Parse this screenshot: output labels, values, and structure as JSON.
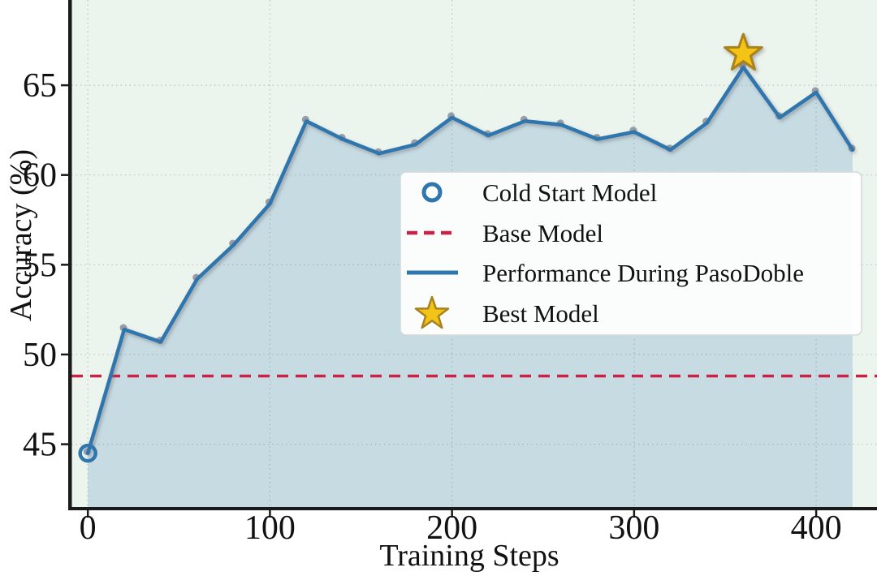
{
  "chart_data": {
    "type": "area",
    "xlabel": "Training Steps",
    "ylabel": "Accuracy (%)",
    "x": [
      0,
      20,
      40,
      60,
      80,
      100,
      120,
      140,
      160,
      180,
      200,
      220,
      240,
      260,
      280,
      300,
      320,
      340,
      360,
      380,
      400,
      420
    ],
    "series": [
      {
        "name": "Performance During PasoDoble",
        "values": [
          44.5,
          51.4,
          50.7,
          54.2,
          56.1,
          58.4,
          63.0,
          62.0,
          61.2,
          61.7,
          63.2,
          62.2,
          63.0,
          62.8,
          62.0,
          62.4,
          61.4,
          62.9,
          66.0,
          63.2,
          64.6,
          61.4
        ]
      }
    ],
    "baseline": {
      "name": "Base Model",
      "value": 48.8,
      "style": "dashed"
    },
    "cold_start": {
      "name": "Cold Start Model",
      "x": 0,
      "y": 44.5
    },
    "best_model": {
      "name": "Best Model",
      "x": 360,
      "y": 66.0
    },
    "xticks": [
      0,
      100,
      200,
      300,
      400
    ],
    "yticks": [
      45,
      50,
      55,
      60,
      65
    ],
    "xlim": [
      -9,
      433.4
    ],
    "ylim": [
      41.5,
      69.75
    ],
    "grid": "dotted",
    "legend_position": "center-right"
  },
  "legend": {
    "items": [
      {
        "marker": "open-circle",
        "label": "Cold Start Model"
      },
      {
        "marker": "dashed-line",
        "label": "Base Model"
      },
      {
        "marker": "solid-line",
        "label": "Performance During PasoDoble"
      },
      {
        "marker": "star",
        "label": "Best Model"
      }
    ]
  },
  "colors": {
    "line": "#2e76ad",
    "area_fill": "rgba(49,122,181,0.20)",
    "plot_bg": "#ecf4ee",
    "base_line": "#cb2146",
    "star_fill": "#f3c317",
    "star_edge": "#a9821c",
    "shadow_dot": "#8d8d99",
    "grid": "#b9c4bb",
    "text": "#111111"
  }
}
